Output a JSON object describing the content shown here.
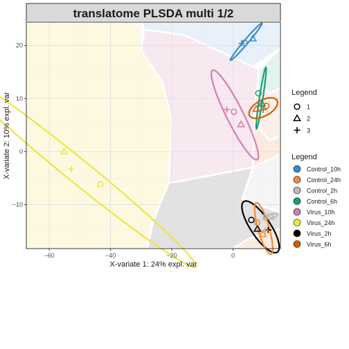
{
  "chart_data": {
    "type": "scatter",
    "title": "translatome PLSDA multi 1/2",
    "xlabel": "X-variate 1: 24% expl. var",
    "ylabel": "X-variate 2: 10% expl. var",
    "xlim": [
      -67.5,
      15.5
    ],
    "ylim": [
      -18.3,
      24.4
    ],
    "x_ticks": [
      -60,
      -40,
      -20,
      0
    ],
    "y_ticks": [
      -10,
      0,
      10,
      20
    ],
    "grid": true,
    "shape_legend": {
      "title": "Legend",
      "items": [
        {
          "label": "1",
          "shape": "circle"
        },
        {
          "label": "2",
          "shape": "triangle"
        },
        {
          "label": "3",
          "shape": "plus"
        }
      ]
    },
    "color_legend": {
      "title": "Legend",
      "items": [
        {
          "label": "Control_10h",
          "color": "#3A8CC8"
        },
        {
          "label": "Control_24h",
          "color": "#F08A3A"
        },
        {
          "label": "Control_2h",
          "color": "#BDBDBD"
        },
        {
          "label": "Control_6h",
          "color": "#12A07A"
        },
        {
          "label": "Virus_10h",
          "color": "#D67CB6"
        },
        {
          "label": "Virus_24h",
          "color": "#F0E443"
        },
        {
          "label": "Virus_2h",
          "color": "#000000"
        },
        {
          "label": "Virus_6h",
          "color": "#D45E00"
        }
      ]
    },
    "regions": [
      {
        "group": "Virus_24h",
        "fill": "#FDF9E0",
        "polygon": [
          [
            -67.5,
            -18.3
          ],
          [
            -67.5,
            24.4
          ],
          [
            -30,
            24.4
          ],
          [
            -30,
            19
          ],
          [
            -23,
            13
          ],
          [
            -20,
            6
          ],
          [
            -21,
            -6
          ],
          [
            -26,
            -13
          ],
          [
            -28,
            -18.3
          ]
        ]
      },
      {
        "group": "Control_10h",
        "fill": "#E8F0FA",
        "polygon": [
          [
            -30,
            24.4
          ],
          [
            15.5,
            24.4
          ],
          [
            15.5,
            19.5
          ],
          [
            6.5,
            16
          ],
          [
            -16,
            22
          ],
          [
            -29,
            23
          ]
        ]
      },
      {
        "group": "Virus_10h",
        "fill": "#F8E9F1",
        "polygon": [
          [
            -29,
            23
          ],
          [
            -16,
            22
          ],
          [
            6.5,
            16
          ],
          [
            8.5,
            15.5
          ],
          [
            7,
            7.5
          ],
          [
            7,
            5.5
          ],
          [
            6.5,
            -3
          ],
          [
            -21,
            -6
          ],
          [
            -20,
            6
          ],
          [
            -23,
            13
          ],
          [
            -30,
            19
          ]
        ]
      },
      {
        "group": "Control_6h",
        "fill": "#E2F3EE",
        "polygon": [
          [
            8.5,
            15.5
          ],
          [
            15.5,
            19.5
          ],
          [
            15.5,
            12
          ],
          [
            12,
            11
          ],
          [
            8,
            12.5
          ]
        ]
      },
      {
        "group": "Virus_6h",
        "fill": "#FAF0E8",
        "polygon": [
          [
            8,
            12.5
          ],
          [
            12,
            11
          ],
          [
            15.5,
            12
          ],
          [
            15.5,
            3
          ],
          [
            12,
            2
          ],
          [
            7,
            5.5
          ],
          [
            7,
            7.5
          ]
        ]
      },
      {
        "group": "Control_24h",
        "fill": "#FBEBDF",
        "polygon": [
          [
            7,
            5.5
          ],
          [
            12,
            2
          ],
          [
            15.5,
            3
          ],
          [
            15.5,
            -0.5
          ],
          [
            6.5,
            -3
          ]
        ]
      },
      {
        "group": "Control_2h",
        "fill": "#F5F5F5",
        "polygon": [
          [
            6.5,
            -3
          ],
          [
            15.5,
            -0.5
          ],
          [
            15.5,
            -11.5
          ],
          [
            3,
            -9
          ]
        ]
      },
      {
        "group": "Virus_2h",
        "fill": "#E2E2E2",
        "polygon": [
          [
            -21,
            -6
          ],
          [
            6.5,
            -3
          ],
          [
            3,
            -9
          ],
          [
            15.5,
            -11.5
          ],
          [
            15.5,
            -14.5
          ],
          [
            5,
            -16.5
          ],
          [
            0,
            -18.3
          ],
          [
            -28,
            -18.3
          ],
          [
            -26,
            -13
          ]
        ]
      },
      {
        "group": "Control_24h",
        "fill": "#FBEBDF",
        "polygon": [
          [
            5,
            -16.5
          ],
          [
            15.5,
            -14.5
          ],
          [
            15.5,
            -18.3
          ],
          [
            0,
            -18.3
          ]
        ]
      }
    ],
    "ellipses": [
      {
        "group": "Control_10h",
        "color": "#3A8CC8",
        "cx": 4.3,
        "cy": 20.7,
        "rx": 6.2,
        "ry": 0.5,
        "angle": 34
      },
      {
        "group": "Control_6h",
        "color": "#12A07A",
        "cx": 9.2,
        "cy": 10.1,
        "rx": 6.0,
        "ry": 0.55,
        "angle": 75
      },
      {
        "group": "Virus_6h",
        "color": "#D45E00",
        "cx": 9.9,
        "cy": 8.2,
        "rx": 4.8,
        "ry": 1.6,
        "angle": 14
      },
      {
        "group": "Virus_10h",
        "color": "#D67CB6",
        "cx": 0.6,
        "cy": 6.9,
        "rx": 11.2,
        "ry": 2.3,
        "angle": -48
      },
      {
        "group": "Virus_24h",
        "color": "#F0E443",
        "cx": -51,
        "cy": -3.5,
        "rx": 43.0,
        "ry": 2.6,
        "angle": -25
      },
      {
        "group": "Control_2h",
        "color": "#BDBDBD",
        "cx": 12.2,
        "cy": -12.3,
        "rx": 2.4,
        "ry": 0.45,
        "angle": 10
      },
      {
        "group": "Virus_2h",
        "color": "#000000",
        "cx": 9.0,
        "cy": -14.2,
        "rx": 7.4,
        "ry": 2.5,
        "angle": -37
      },
      {
        "group": "Control_24h",
        "color": "#F08A3A",
        "cx": 10.0,
        "cy": -14.5,
        "rx": 5.4,
        "ry": 1.7,
        "angle": -62
      }
    ],
    "points": [
      {
        "group": "Control_10h",
        "shape": "circle",
        "x": 3.8,
        "y": 20.5
      },
      {
        "group": "Control_10h",
        "shape": "triangle",
        "x": 6.5,
        "y": 21.3
      },
      {
        "group": "Control_10h",
        "shape": "plus",
        "x": 2.8,
        "y": 20.4
      },
      {
        "group": "Control_6h",
        "shape": "circle",
        "x": 8.3,
        "y": 11.0
      },
      {
        "group": "Control_6h",
        "shape": "triangle",
        "x": 9.5,
        "y": 9.0
      },
      {
        "group": "Control_6h",
        "shape": "plus",
        "x": 9.3,
        "y": 8.6
      },
      {
        "group": "Virus_6h",
        "shape": "circle",
        "x": 10.9,
        "y": 8.6
      },
      {
        "group": "Virus_6h",
        "shape": "triangle",
        "x": 7.6,
        "y": 8.0
      },
      {
        "group": "Virus_6h",
        "shape": "plus",
        "x": 9.9,
        "y": 7.9
      },
      {
        "group": "Virus_10h",
        "shape": "circle",
        "x": 0.3,
        "y": 7.5
      },
      {
        "group": "Virus_10h",
        "shape": "triangle",
        "x": 2.6,
        "y": 5.1
      },
      {
        "group": "Virus_10h",
        "shape": "plus",
        "x": -2.0,
        "y": 7.9
      },
      {
        "group": "Virus_24h",
        "shape": "circle",
        "x": -43.3,
        "y": -6.2
      },
      {
        "group": "Virus_24h",
        "shape": "triangle",
        "x": -55.2,
        "y": 0.0
      },
      {
        "group": "Virus_24h",
        "shape": "plus",
        "x": -52.8,
        "y": -3.3
      },
      {
        "group": "Control_2h",
        "shape": "circle",
        "x": 10.8,
        "y": -12.2
      },
      {
        "group": "Control_2h",
        "shape": "triangle",
        "x": 12.2,
        "y": -12.2
      },
      {
        "group": "Control_2h",
        "shape": "plus",
        "x": 13.2,
        "y": -12.4
      },
      {
        "group": "Virus_2h",
        "shape": "circle",
        "x": 6.0,
        "y": -12.9
      },
      {
        "group": "Virus_2h",
        "shape": "triangle",
        "x": 8.0,
        "y": -14.6
      },
      {
        "group": "Virus_2h",
        "shape": "plus",
        "x": 11.5,
        "y": -14.8
      },
      {
        "group": "Control_24h",
        "shape": "circle",
        "x": 7.9,
        "y": -13.4
      },
      {
        "group": "Control_24h",
        "shape": "triangle",
        "x": 9.7,
        "y": -15.6
      },
      {
        "group": "Control_24h",
        "shape": "plus",
        "x": 10.6,
        "y": -14.9
      }
    ]
  }
}
